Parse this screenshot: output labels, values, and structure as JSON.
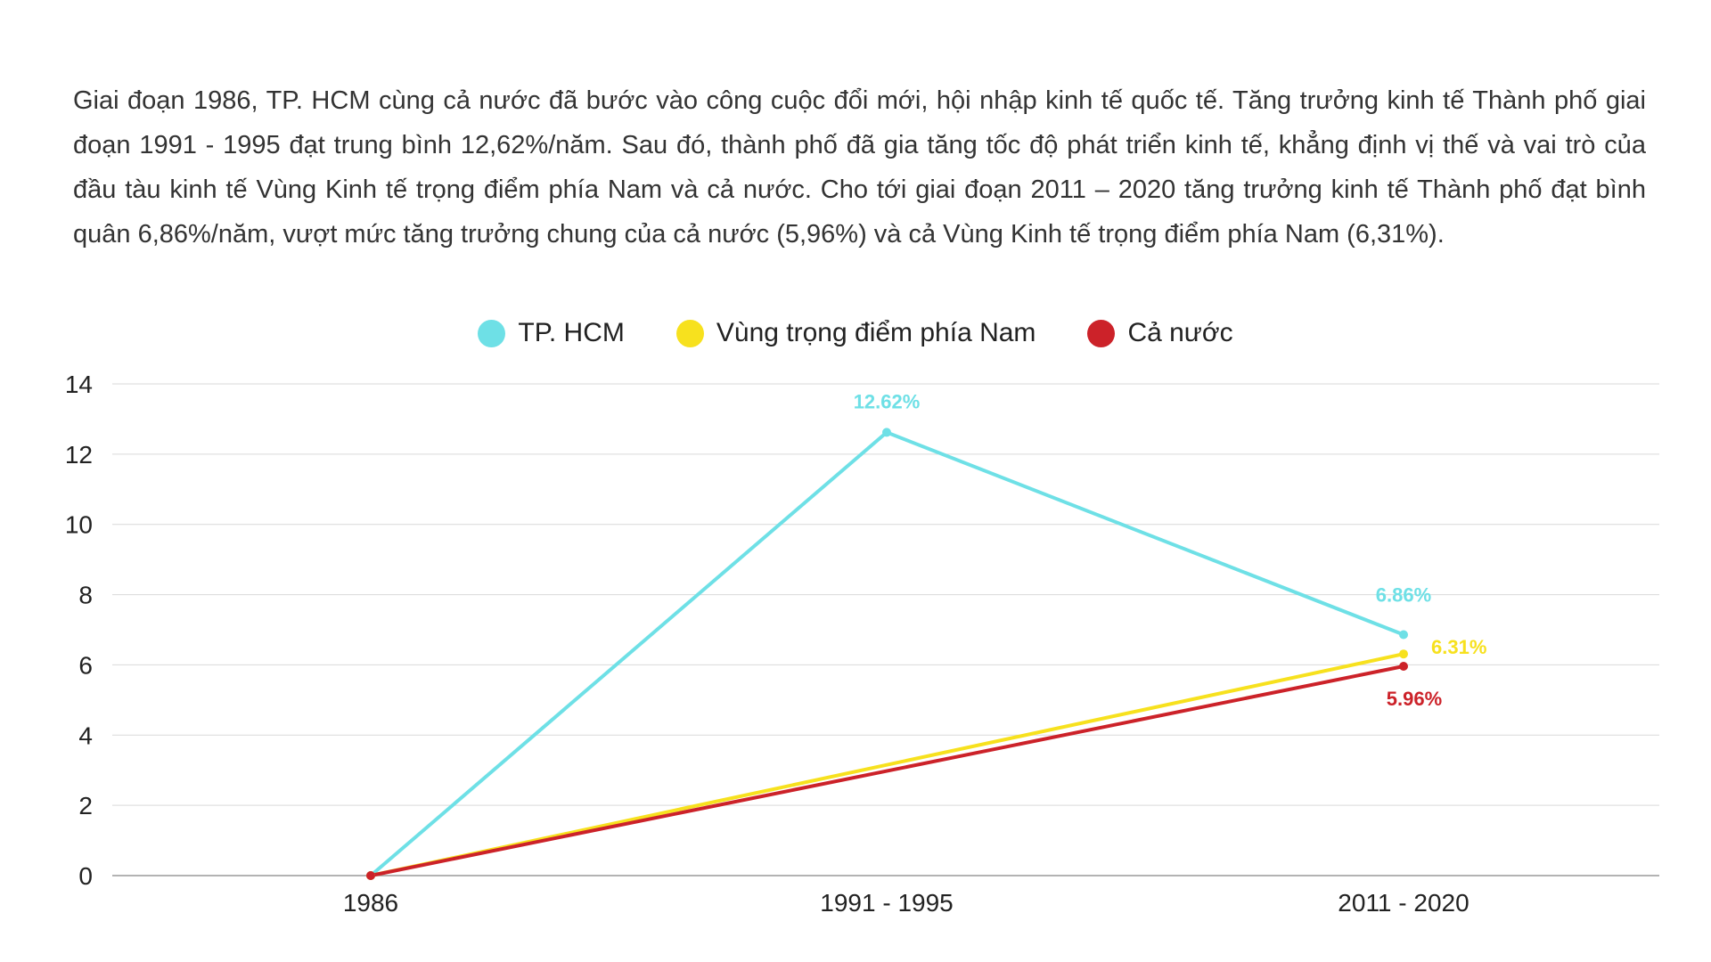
{
  "intro_text": "Giai đoạn 1986, TP. HCM cùng cả nước đã bước vào công cuộc đổi mới, hội nhập kinh tế quốc tế. Tăng trưởng kinh tế Thành phố giai đoạn 1991 - 1995 đạt trung bình 12,62%/năm. Sau đó, thành phố đã gia tăng tốc độ phát triển kinh tế, khẳng định vị thế và vai trò của đầu tàu kinh tế Vùng Kinh tế trọng điểm phía Nam và cả nước. Cho tới giai đoạn 2011 – 2020 tăng trưởng kinh tế Thành phố đạt bình quân 6,86%/năm, vượt mức tăng trưởng chung của cả nước (5,96%) và cả Vùng Kinh tế trọng điểm phía Nam (6,31%).",
  "chart_data": {
    "type": "line",
    "title": "",
    "xlabel": "",
    "ylabel": "",
    "categories": [
      "1986",
      "1991 - 1995",
      "2011 - 2020"
    ],
    "ylim": [
      0,
      14
    ],
    "yticks": [
      0,
      2,
      4,
      6,
      8,
      10,
      12,
      14
    ],
    "grid": true,
    "legend_position": "top-center",
    "series": [
      {
        "name": "TP. HCM",
        "color": "#6ee0e6",
        "values": [
          0,
          12.62,
          6.86
        ],
        "data_labels": [
          null,
          "12.62%",
          "6.86%"
        ]
      },
      {
        "name": "Vùng trọng điểm phía Nam",
        "color": "#f7e11e",
        "values": [
          0,
          null,
          6.31
        ],
        "data_labels": [
          null,
          null,
          "6.31%"
        ]
      },
      {
        "name": "Cả nước",
        "color": "#cc2229",
        "values": [
          0,
          null,
          5.96
        ],
        "data_labels": [
          null,
          null,
          "5.96%"
        ]
      }
    ]
  }
}
